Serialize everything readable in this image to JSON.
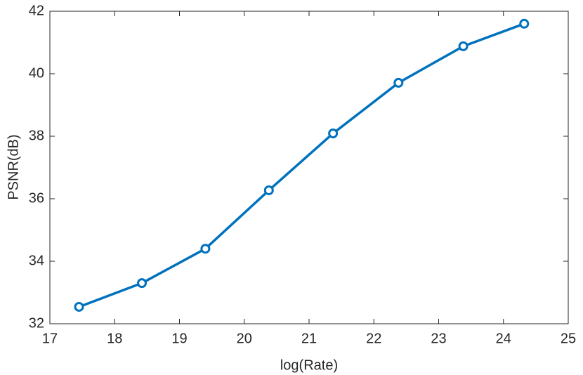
{
  "chart_data": {
    "type": "line",
    "x_label": "log(Rate)",
    "y_label": "PSNR(dB)",
    "x": [
      17.45,
      18.42,
      19.4,
      20.38,
      21.37,
      22.38,
      23.38,
      24.32
    ],
    "series": [
      {
        "name": "PSNR",
        "color": "#0072bd",
        "values": [
          32.54,
          33.3,
          34.4,
          36.27,
          38.09,
          39.71,
          40.88,
          41.6
        ]
      }
    ],
    "xlim": [
      17,
      25
    ],
    "xticks": [
      17,
      18,
      19,
      20,
      21,
      22,
      23,
      24,
      25
    ],
    "ylim": [
      32,
      42
    ],
    "yticks": [
      32,
      34,
      36,
      38,
      40,
      42
    ],
    "grid": false,
    "markers": "circle"
  }
}
